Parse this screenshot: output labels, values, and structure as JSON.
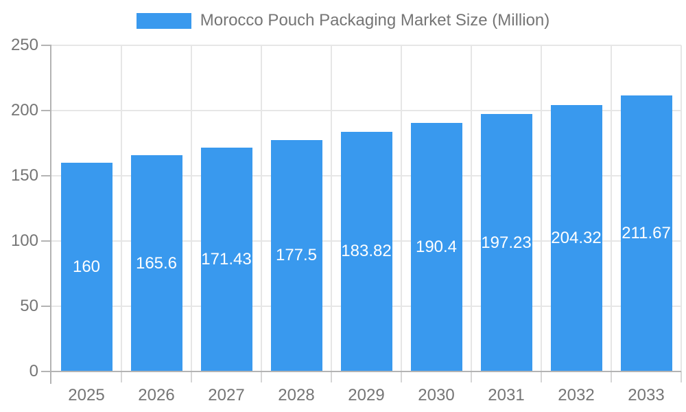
{
  "legend": {
    "title": "Morocco Pouch Packaging Market Size (Million)"
  },
  "chart_data": {
    "type": "bar",
    "title": "Morocco Pouch Packaging Market Size (Million)",
    "categories": [
      "2025",
      "2026",
      "2027",
      "2028",
      "2029",
      "2030",
      "2031",
      "2032",
      "2033"
    ],
    "values": [
      160,
      165.6,
      171.43,
      177.5,
      183.82,
      190.4,
      197.23,
      204.32,
      211.67
    ],
    "value_labels": [
      "160",
      "165.6",
      "171.43",
      "177.5",
      "183.82",
      "190.4",
      "197.23",
      "204.32",
      "211.67"
    ],
    "xlabel": "",
    "ylabel": "",
    "ylim": [
      0,
      250
    ],
    "ytick_interval": 50,
    "ytick_labels": [
      "0",
      "50",
      "100",
      "150",
      "200",
      "250"
    ],
    "grid": true,
    "legend_position": "top",
    "bar_label_position": "inside-middle",
    "colors": {
      "bar": "#3999ee",
      "bar_label": "#ffffff",
      "axis_text": "#757575",
      "axis_line": "#b3b3b3",
      "gridline": "#e6e6e6",
      "minor_tick": "#d6d6d6",
      "background": "#ffffff"
    }
  }
}
